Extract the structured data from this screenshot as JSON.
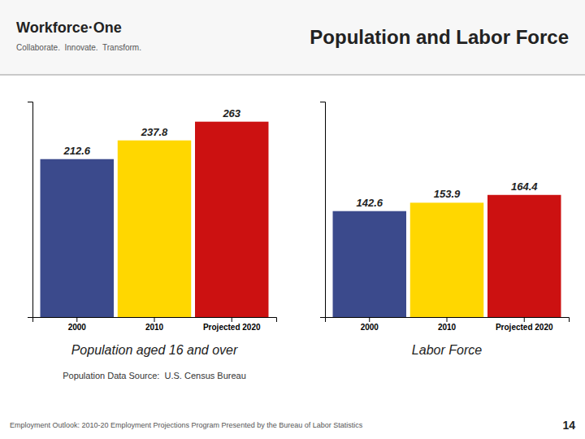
{
  "title": "Population and Labor Force",
  "annotations": [
    "Workforce·One",
    "Collaborate.  Innovate.  Transform.",
    "Employment Outlook: 2010-20 Employment Projections Program Presented by the Bureau of Labor Statistics",
    "14"
  ],
  "chart_data": [
    {
      "type": "bar",
      "xlabel": "Population aged 16 and over",
      "categories": [
        "2000",
        "2010",
        "Projected 2020"
      ],
      "values": [
        212.6,
        237.8,
        263.0
      ],
      "colors": [
        "#3B4A8C",
        "#FFD700",
        "#CC1111"
      ],
      "ylim": [
        0,
        290
      ],
      "tick_labels": "x",
      "data_labels": true,
      "annotations": [
        "Population Data Source:  U.S. Census Bureau"
      ]
    },
    {
      "type": "bar",
      "xlabel": "Labor Force",
      "categories": [
        "2000",
        "2010",
        "Projected 2020"
      ],
      "values": [
        142.6,
        153.9,
        164.4
      ],
      "colors": [
        "#3B4A8C",
        "#FFD700",
        "#CC1111"
      ],
      "ylim": [
        0,
        290
      ],
      "tick_labels": "x",
      "data_labels": true
    }
  ]
}
